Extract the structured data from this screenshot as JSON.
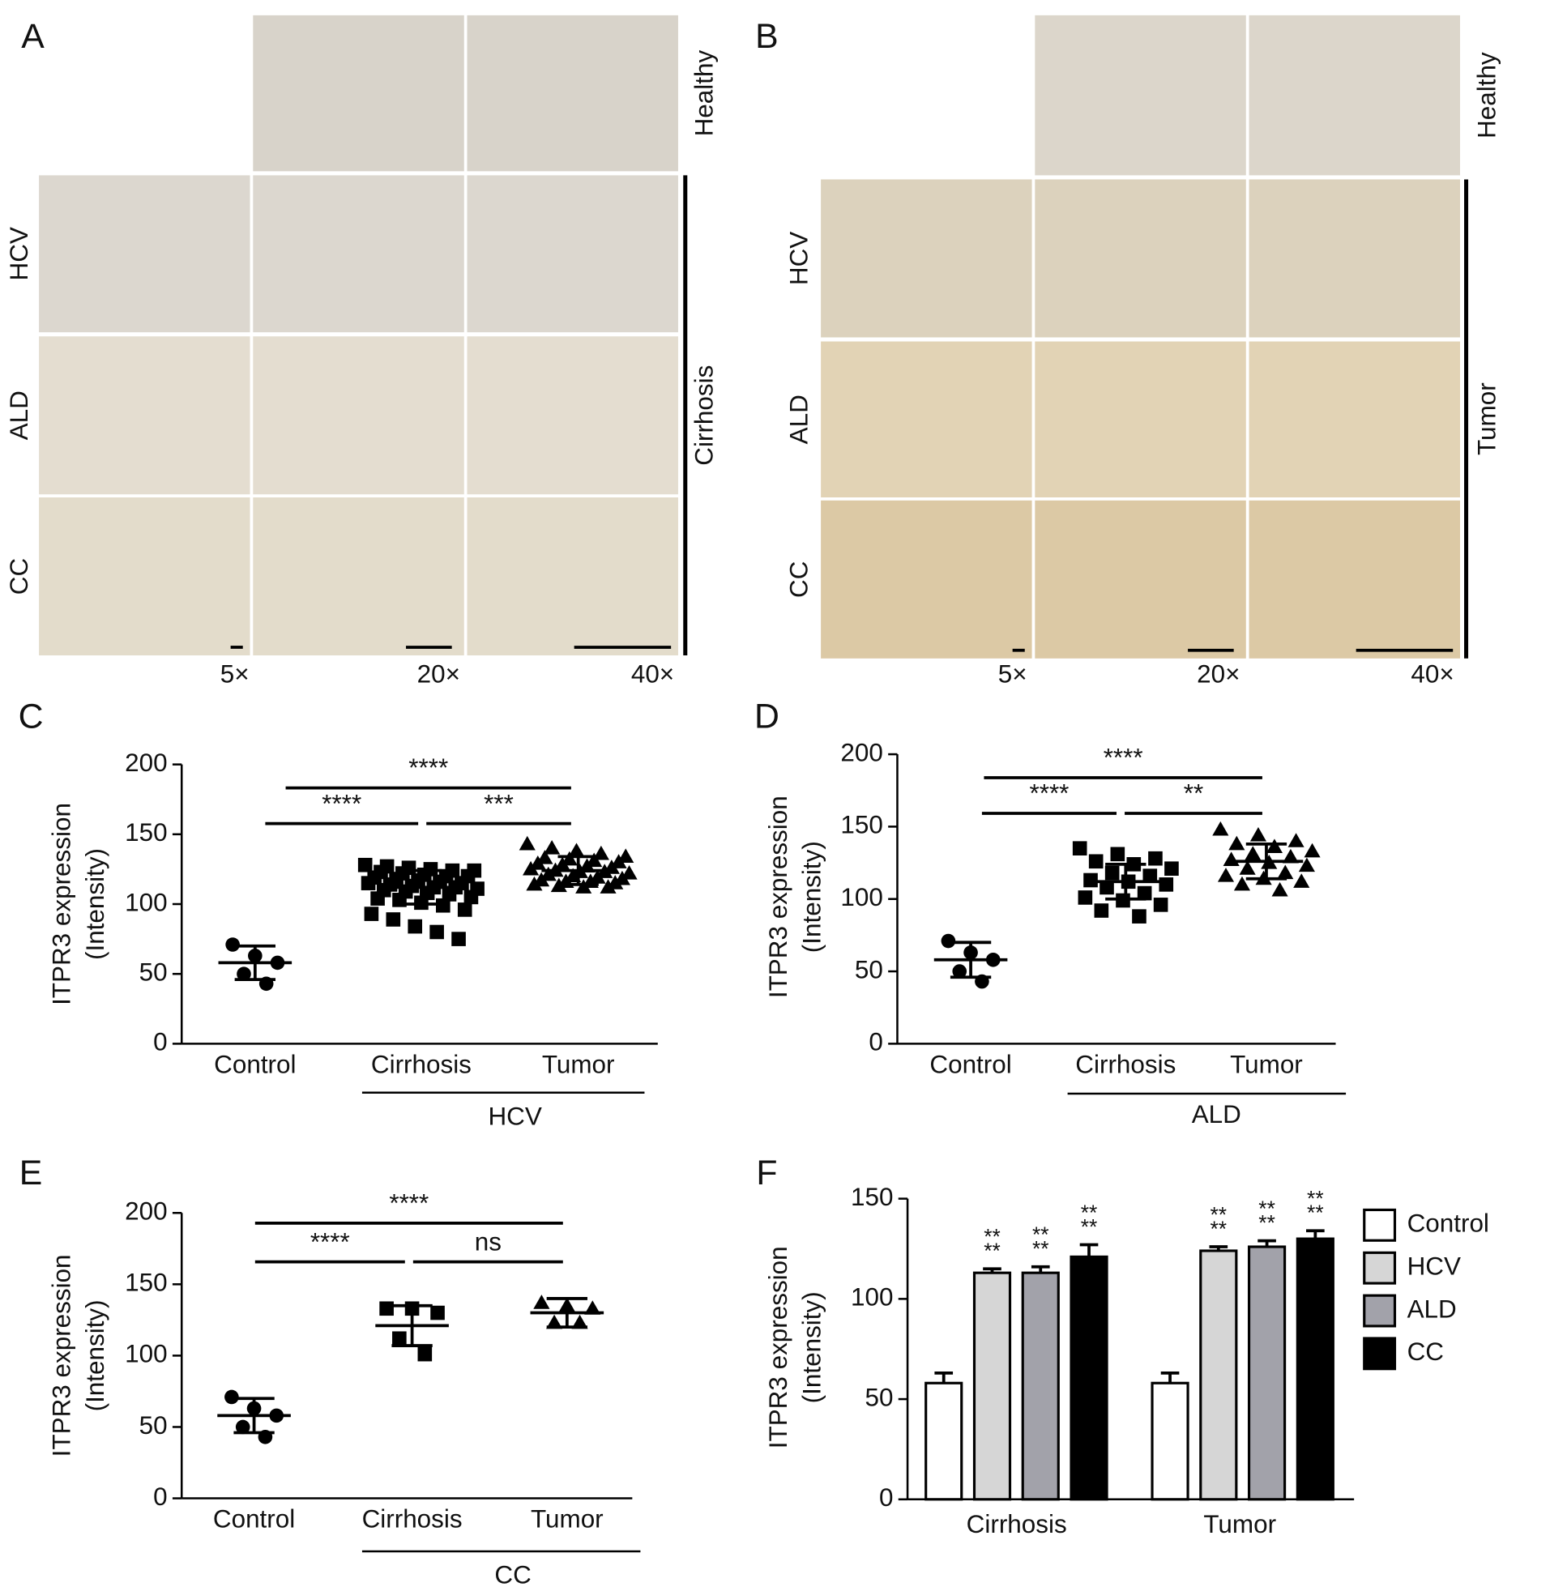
{
  "micrographs": [
    {
      "label": "A",
      "rows": [
        "HCV",
        "ALD",
        "CC"
      ],
      "top_row": "Healthy",
      "side_label": "Cirrhosis",
      "magnifications": [
        "5×",
        "20×",
        "40×"
      ]
    },
    {
      "label": "B",
      "rows": [
        "HCV",
        "ALD",
        "CC"
      ],
      "top_row": "Healthy",
      "side_label": "Tumor",
      "magnifications": [
        "5×",
        "20×",
        "40×"
      ]
    }
  ],
  "chart_data": [
    {
      "type": "dot_plot",
      "label": "C",
      "ylabel": [
        "ITPR3 expression",
        "(Intensity)"
      ],
      "categories": [
        "Control",
        "Cirrhosis",
        "Tumor"
      ],
      "group_label": "HCV",
      "ylim": [
        0,
        200
      ],
      "yticks": [
        0,
        50,
        100,
        150,
        200
      ],
      "markers": [
        "circle",
        "square",
        "triangle"
      ],
      "points": [
        [
          71,
          63,
          58,
          50,
          43
        ],
        [
          128,
          127,
          126,
          125,
          124,
          124,
          123,
          122,
          121,
          120,
          120,
          119,
          118,
          117,
          116,
          115,
          115,
          114,
          113,
          112,
          112,
          111,
          110,
          109,
          108,
          107,
          105,
          104,
          103,
          101,
          99,
          96,
          93,
          89,
          84,
          80,
          75
        ],
        [
          143,
          140,
          138,
          136,
          134,
          133,
          132,
          131,
          130,
          129,
          128,
          127,
          126,
          125,
          124,
          123,
          123,
          122,
          121,
          120,
          119,
          118,
          117,
          116,
          116,
          115,
          114,
          113,
          112,
          112
        ]
      ],
      "means": [
        58,
        112,
        124
      ],
      "sd": [
        12,
        12,
        10
      ],
      "annotations": [
        "****",
        "****",
        "***"
      ]
    },
    {
      "type": "dot_plot",
      "label": "D",
      "ylabel": [
        "ITPR3 expression",
        "(Intensity)"
      ],
      "categories": [
        "Control",
        "Cirrhosis",
        "Tumor"
      ],
      "group_label": "ALD",
      "ylim": [
        0,
        200
      ],
      "yticks": [
        0,
        50,
        100,
        150,
        200
      ],
      "markers": [
        "circle",
        "square",
        "triangle"
      ],
      "points": [
        [
          71,
          63,
          58,
          50,
          43
        ],
        [
          135,
          131,
          128,
          126,
          124,
          121,
          118,
          116,
          113,
          112,
          110,
          108,
          104,
          101,
          99,
          96,
          92,
          88
        ],
        [
          148,
          144,
          140,
          138,
          136,
          133,
          131,
          129,
          127,
          125,
          123,
          121,
          118,
          116,
          114,
          112,
          110,
          106
        ]
      ],
      "means": [
        58,
        112,
        126
      ],
      "sd": [
        12,
        12,
        12
      ],
      "annotations": [
        "****",
        "****",
        "**"
      ]
    },
    {
      "type": "dot_plot",
      "label": "E",
      "ylabel": [
        "ITPR3 expression",
        "(Intensity)"
      ],
      "categories": [
        "Control",
        "Cirrhosis",
        "Tumor"
      ],
      "group_label": "CC",
      "ylim": [
        0,
        200
      ],
      "yticks": [
        0,
        50,
        100,
        150,
        200
      ],
      "markers": [
        "circle",
        "square",
        "triangle"
      ],
      "points": [
        [
          71,
          63,
          58,
          50,
          43
        ],
        [
          133,
          133,
          130,
          112,
          101
        ],
        [
          137,
          135,
          133,
          123,
          123
        ]
      ],
      "means": [
        58,
        121,
        130
      ],
      "sd": [
        12,
        14,
        10
      ],
      "annotations": [
        "****",
        "****",
        "ns"
      ]
    },
    {
      "type": "bar",
      "label": "F",
      "ylabel": [
        "ITPR3 expression",
        "(Intensity)"
      ],
      "categories": [
        "Cirrhosis",
        "Tumor"
      ],
      "ylim": [
        0,
        150
      ],
      "yticks": [
        0,
        50,
        100,
        150
      ],
      "legend": "right",
      "series": [
        {
          "name": "Control",
          "color": "#ffffff",
          "values": [
            58,
            58
          ],
          "errors": [
            5,
            5
          ]
        },
        {
          "name": "HCV",
          "color": "#d6d6d6",
          "values": [
            113,
            124
          ],
          "errors": [
            2,
            2
          ],
          "stars": [
            [
              "**",
              "**"
            ],
            [
              "**",
              "**"
            ]
          ]
        },
        {
          "name": "ALD",
          "color": "#a2a2aa",
          "values": [
            113,
            126
          ],
          "errors": [
            3,
            3
          ],
          "stars": [
            [
              "**",
              "**"
            ],
            [
              "**",
              "**"
            ]
          ]
        },
        {
          "name": "CC",
          "color": "#000000",
          "values": [
            121,
            130
          ],
          "errors": [
            6,
            4
          ],
          "stars": [
            [
              "**",
              "**"
            ],
            [
              "**",
              "**"
            ]
          ]
        }
      ]
    }
  ]
}
